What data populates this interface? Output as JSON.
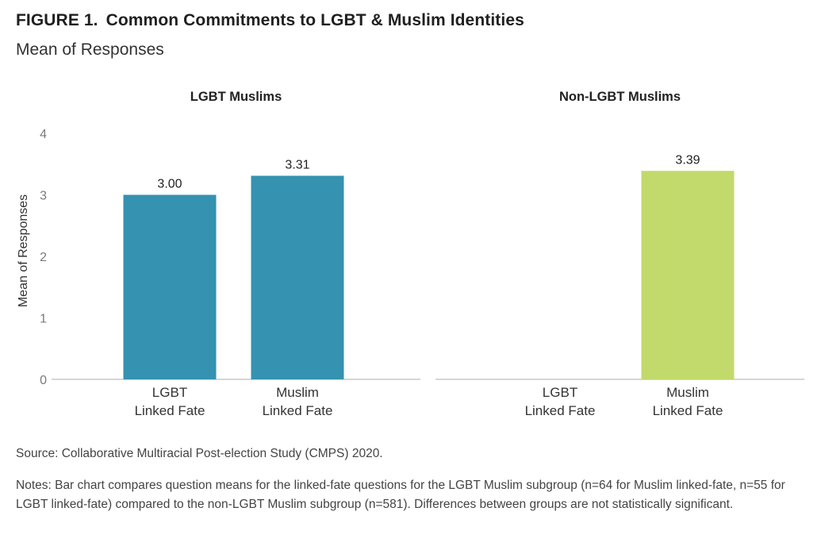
{
  "figure": {
    "label": "FIGURE 1.",
    "title": "Common Commitments to LGBT & Muslim Identities",
    "subtitle": "Mean of Responses"
  },
  "chart_data": {
    "type": "bar",
    "ylabel": "Mean of Responses",
    "ylim": [
      0,
      4
    ],
    "yticks": [
      "0",
      "1",
      "2",
      "3",
      "4"
    ],
    "grid": false,
    "categories": [
      [
        "LGBT",
        "Linked Fate"
      ],
      [
        "Muslim",
        "Linked Fate"
      ]
    ],
    "panels": [
      {
        "title": "LGBT Muslims",
        "color": "#3592b0",
        "values": [
          3.0,
          3.31
        ],
        "labels": [
          "3.00",
          "3.31"
        ]
      },
      {
        "title": "Non-LGBT Muslims",
        "color": "#c2d96b",
        "values": [
          null,
          3.39
        ],
        "labels": [
          "",
          "3.39"
        ]
      }
    ]
  },
  "source": "Source: Collaborative Multiracial Post-election Study (CMPS) 2020.",
  "notes": "Notes: Bar chart compares question means for the linked-fate questions for the LGBT Muslim subgroup (n=64 for Muslim linked-fate, n=55 for LGBT linked-fate) compared to the non-LGBT Muslim subgroup (n=581). Differences between groups are not statistically significant."
}
